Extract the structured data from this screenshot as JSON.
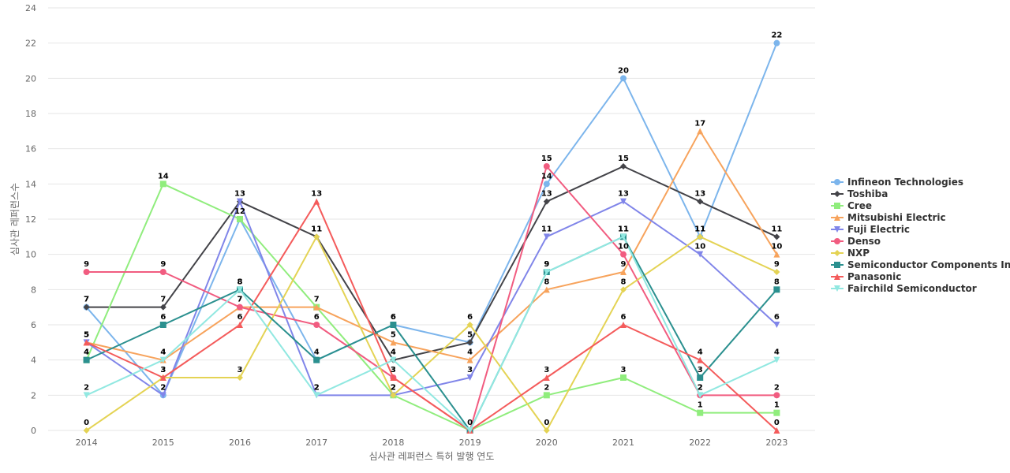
{
  "chart_data": {
    "type": "line",
    "xlabel": "심사관 레퍼런스 특허 발행 연도",
    "ylabel": "심사관 레퍼런스수",
    "ylim": [
      0,
      24
    ],
    "yticks": [
      0,
      2,
      4,
      6,
      8,
      10,
      12,
      14,
      16,
      18,
      20,
      22,
      24
    ],
    "grid": true,
    "legend_position": "right",
    "categories": [
      "2014",
      "2015",
      "2016",
      "2017",
      "2018",
      "2019",
      "2020",
      "2021",
      "2022",
      "2023"
    ],
    "series": [
      {
        "name": "Infineon Technologies",
        "color": "#7cb5ec",
        "marker": "circle",
        "values": [
          7,
          2,
          12,
          4,
          6,
          5,
          14,
          20,
          11,
          22
        ]
      },
      {
        "name": "Toshiba",
        "color": "#434348",
        "marker": "diamond",
        "values": [
          7,
          7,
          13,
          11,
          4,
          5,
          13,
          15,
          13,
          11
        ]
      },
      {
        "name": "Cree",
        "color": "#90ed7d",
        "marker": "square",
        "values": [
          4,
          14,
          12,
          7,
          2,
          0,
          2,
          3,
          1,
          1
        ]
      },
      {
        "name": "Mitsubishi Electric",
        "color": "#f7a35c",
        "marker": "triangle",
        "values": [
          5,
          4,
          7,
          7,
          5,
          4,
          8,
          9,
          17,
          10
        ]
      },
      {
        "name": "Fuji Electric",
        "color": "#8085e9",
        "marker": "triangle-down",
        "values": [
          5,
          2,
          13,
          2,
          2,
          3,
          11,
          13,
          10,
          6
        ]
      },
      {
        "name": "Denso",
        "color": "#f15c80",
        "marker": "circle",
        "values": [
          9,
          9,
          7,
          6,
          3,
          0,
          15,
          10,
          2,
          2
        ]
      },
      {
        "name": "NXP",
        "color": "#e4d354",
        "marker": "diamond",
        "values": [
          0,
          3,
          3,
          11,
          2,
          6,
          0,
          8,
          11,
          9
        ]
      },
      {
        "name": "Semiconductor Components In...",
        "color": "#2b908f",
        "marker": "square",
        "values": [
          4,
          6,
          8,
          4,
          6,
          0,
          9,
          11,
          3,
          8
        ]
      },
      {
        "name": "Panasonic",
        "color": "#f45b5b",
        "marker": "triangle",
        "values": [
          5,
          3,
          6,
          13,
          3,
          0,
          3,
          6,
          4,
          0
        ]
      },
      {
        "name": "Fairchild Semiconductor",
        "color": "#91e8e1",
        "marker": "triangle-down",
        "values": [
          2,
          4,
          8,
          2,
          4,
          0,
          9,
          11,
          2,
          4
        ]
      }
    ],
    "data_labels": [
      [
        7,
        2,
        12,
        null,
        6,
        null,
        14,
        20,
        11,
        22
      ],
      [
        7,
        7,
        13,
        11,
        4,
        5,
        13,
        15,
        13,
        11
      ],
      [
        4,
        14,
        null,
        null,
        2,
        0,
        2,
        3,
        1,
        1
      ],
      [
        5,
        4,
        7,
        7,
        5,
        4,
        8,
        9,
        17,
        10
      ],
      [
        5,
        2,
        null,
        2,
        null,
        3,
        11,
        13,
        10,
        6
      ],
      [
        9,
        9,
        7,
        6,
        3,
        null,
        15,
        10,
        2,
        2
      ],
      [
        0,
        3,
        3,
        11,
        2,
        6,
        0,
        8,
        11,
        9
      ],
      [
        4,
        6,
        8,
        4,
        6,
        null,
        9,
        11,
        3,
        8
      ],
      [
        5,
        3,
        6,
        13,
        3,
        null,
        3,
        6,
        4,
        0
      ],
      [
        2,
        4,
        8,
        2,
        4,
        null,
        9,
        11,
        2,
        4
      ]
    ]
  }
}
